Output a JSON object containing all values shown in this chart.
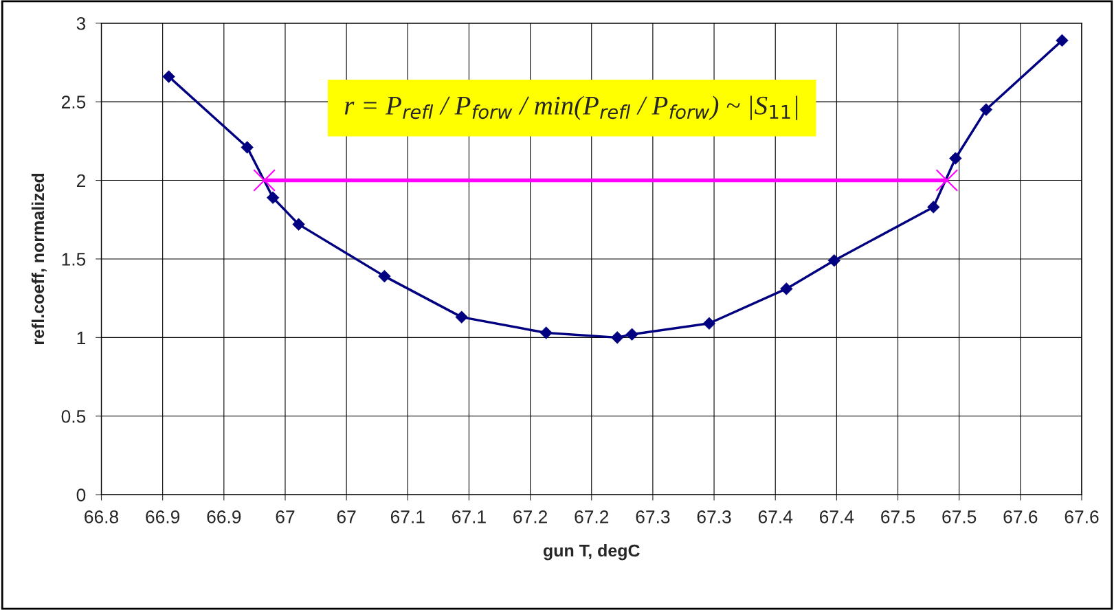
{
  "chart_data": {
    "type": "line",
    "xlabel": "gun T, degC",
    "ylabel": "refl.coeff, normalized",
    "xlim": [
      66.8,
      67.6
    ],
    "xticks": [
      {
        "value": 66.8,
        "label": "66.8"
      },
      {
        "value": 66.85,
        "label": "66.9"
      },
      {
        "value": 66.9,
        "label": "66.9"
      },
      {
        "value": 66.95,
        "label": "67"
      },
      {
        "value": 67.0,
        "label": "67"
      },
      {
        "value": 67.05,
        "label": "67.1"
      },
      {
        "value": 67.1,
        "label": "67.1"
      },
      {
        "value": 67.15,
        "label": "67.2"
      },
      {
        "value": 67.2,
        "label": "67.2"
      },
      {
        "value": 67.25,
        "label": "67.3"
      },
      {
        "value": 67.3,
        "label": "67.3"
      },
      {
        "value": 67.35,
        "label": "67.4"
      },
      {
        "value": 67.4,
        "label": "67.4"
      },
      {
        "value": 67.45,
        "label": "67.5"
      },
      {
        "value": 67.5,
        "label": "67.5"
      },
      {
        "value": 67.55,
        "label": "67.6"
      },
      {
        "value": 67.6,
        "label": "67.6"
      }
    ],
    "ylim": [
      0,
      3
    ],
    "yticks": [
      0,
      0.5,
      1,
      1.5,
      2,
      2.5,
      3
    ],
    "grid": true,
    "series": [
      {
        "color": "#000080",
        "marker": "diamond",
        "x": [
          66.855,
          66.919,
          66.94,
          66.961,
          67.031,
          67.094,
          67.163,
          67.221,
          67.233,
          67.296,
          67.359,
          67.398,
          67.479,
          67.497,
          67.522,
          67.584
        ],
        "values": [
          2.66,
          2.21,
          1.89,
          1.72,
          1.39,
          1.13,
          1.03,
          1.0,
          1.02,
          1.09,
          1.31,
          1.49,
          1.83,
          2.14,
          2.45,
          2.89
        ]
      },
      {
        "color": "#ff00ff",
        "marker": "cross",
        "x": [
          66.933,
          67.49
        ],
        "values": [
          2,
          2
        ]
      }
    ],
    "annotations": [
      "r = P$_{refl}$ / P$_{forw}$ / min(P$_{refl}$ / P$_{forw}$) ~ |S$_{11}$|"
    ]
  }
}
